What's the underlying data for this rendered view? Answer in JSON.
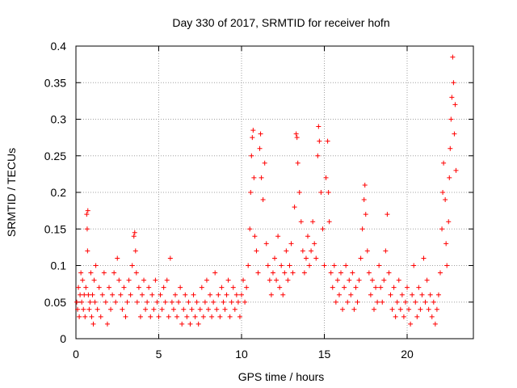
{
  "chart_data": {
    "type": "scatter",
    "title": "Day 330 of 2017, SRMTID for receiver hofn",
    "xlabel": "GPS time / hours",
    "ylabel": "SRMTID / TECUs",
    "xlim": [
      0,
      24
    ],
    "ylim": [
      0,
      0.4
    ],
    "xticks": [
      0,
      5,
      10,
      15,
      20
    ],
    "xtick_labels": [
      "0",
      "5",
      "10",
      "15",
      "20"
    ],
    "yticks": [
      0,
      0.05,
      0.1,
      0.15,
      0.2,
      0.25,
      0.3,
      0.35,
      0.4
    ],
    "ytick_labels": [
      "0",
      "0.05",
      "0.1",
      "0.15",
      "0.2",
      "0.25",
      "0.3",
      "0.35",
      "0.4"
    ],
    "grid": true,
    "marker": "+",
    "series_color": "#ff0000",
    "series": [
      {
        "name": "SRMTID",
        "points": [
          [
            0.05,
            0.05
          ],
          [
            0.1,
            0.04
          ],
          [
            0.15,
            0.07
          ],
          [
            0.2,
            0.03
          ],
          [
            0.25,
            0.06
          ],
          [
            0.3,
            0.09
          ],
          [
            0.35,
            0.05
          ],
          [
            0.4,
            0.08
          ],
          [
            0.45,
            0.04
          ],
          [
            0.5,
            0.06
          ],
          [
            0.55,
            0.03
          ],
          [
            0.6,
            0.07
          ],
          [
            0.65,
            0.17
          ],
          [
            0.68,
            0.15
          ],
          [
            0.7,
            0.12
          ],
          [
            0.72,
            0.175
          ],
          [
            0.75,
            0.06
          ],
          [
            0.8,
            0.04
          ],
          [
            0.85,
            0.05
          ],
          [
            0.9,
            0.09
          ],
          [
            0.95,
            0.03
          ],
          [
            1.0,
            0.06
          ],
          [
            1.05,
            0.02
          ],
          [
            1.1,
            0.08
          ],
          [
            1.15,
            0.05
          ],
          [
            1.2,
            0.1
          ],
          [
            1.3,
            0.04
          ],
          [
            1.4,
            0.07
          ],
          [
            1.5,
            0.03
          ],
          [
            1.6,
            0.06
          ],
          [
            1.7,
            0.09
          ],
          [
            1.8,
            0.05
          ],
          [
            1.9,
            0.02
          ],
          [
            2.0,
            0.07
          ],
          [
            2.1,
            0.04
          ],
          [
            2.2,
            0.06
          ],
          [
            2.3,
            0.09
          ],
          [
            2.4,
            0.05
          ],
          [
            2.5,
            0.11
          ],
          [
            2.6,
            0.08
          ],
          [
            2.7,
            0.06
          ],
          [
            2.8,
            0.04
          ],
          [
            2.9,
            0.07
          ],
          [
            3.0,
            0.03
          ],
          [
            3.1,
            0.05
          ],
          [
            3.2,
            0.08
          ],
          [
            3.3,
            0.06
          ],
          [
            3.4,
            0.1
          ],
          [
            3.5,
            0.14
          ],
          [
            3.55,
            0.145
          ],
          [
            3.6,
            0.12
          ],
          [
            3.65,
            0.09
          ],
          [
            3.7,
            0.05
          ],
          [
            3.8,
            0.07
          ],
          [
            3.9,
            0.03
          ],
          [
            4.0,
            0.06
          ],
          [
            4.1,
            0.08
          ],
          [
            4.2,
            0.04
          ],
          [
            4.3,
            0.05
          ],
          [
            4.4,
            0.07
          ],
          [
            4.5,
            0.03
          ],
          [
            4.6,
            0.06
          ],
          [
            4.7,
            0.04
          ],
          [
            4.8,
            0.08
          ],
          [
            4.9,
            0.05
          ],
          [
            5.0,
            0.03
          ],
          [
            5.1,
            0.06
          ],
          [
            5.2,
            0.04
          ],
          [
            5.3,
            0.07
          ],
          [
            5.4,
            0.05
          ],
          [
            5.5,
            0.08
          ],
          [
            5.6,
            0.03
          ],
          [
            5.7,
            0.11
          ],
          [
            5.8,
            0.05
          ],
          [
            5.9,
            0.04
          ],
          [
            6.0,
            0.06
          ],
          [
            6.1,
            0.03
          ],
          [
            6.2,
            0.05
          ],
          [
            6.3,
            0.07
          ],
          [
            6.4,
            0.02
          ],
          [
            6.5,
            0.04
          ],
          [
            6.6,
            0.06
          ],
          [
            6.7,
            0.03
          ],
          [
            6.8,
            0.05
          ],
          [
            6.9,
            0.02
          ],
          [
            7.0,
            0.04
          ],
          [
            7.1,
            0.06
          ],
          [
            7.2,
            0.03
          ],
          [
            7.3,
            0.05
          ],
          [
            7.4,
            0.02
          ],
          [
            7.5,
            0.04
          ],
          [
            7.6,
            0.07
          ],
          [
            7.7,
            0.03
          ],
          [
            7.8,
            0.05
          ],
          [
            7.9,
            0.08
          ],
          [
            8.0,
            0.04
          ],
          [
            8.1,
            0.06
          ],
          [
            8.2,
            0.03
          ],
          [
            8.3,
            0.05
          ],
          [
            8.4,
            0.09
          ],
          [
            8.5,
            0.04
          ],
          [
            8.6,
            0.06
          ],
          [
            8.7,
            0.03
          ],
          [
            8.8,
            0.07
          ],
          [
            8.9,
            0.05
          ],
          [
            9.0,
            0.04
          ],
          [
            9.1,
            0.06
          ],
          [
            9.2,
            0.08
          ],
          [
            9.3,
            0.03
          ],
          [
            9.4,
            0.05
          ],
          [
            9.5,
            0.07
          ],
          [
            9.6,
            0.04
          ],
          [
            9.7,
            0.06
          ],
          [
            9.8,
            0.05
          ],
          [
            9.9,
            0.03
          ],
          [
            10.0,
            0.06
          ],
          [
            10.1,
            0.08
          ],
          [
            10.2,
            0.05
          ],
          [
            10.3,
            0.07
          ],
          [
            10.4,
            0.1
          ],
          [
            10.5,
            0.15
          ],
          [
            10.55,
            0.2
          ],
          [
            10.6,
            0.25
          ],
          [
            10.65,
            0.275
          ],
          [
            10.7,
            0.285
          ],
          [
            10.75,
            0.22
          ],
          [
            10.8,
            0.14
          ],
          [
            10.9,
            0.12
          ],
          [
            11.0,
            0.09
          ],
          [
            11.1,
            0.26
          ],
          [
            11.15,
            0.28
          ],
          [
            11.2,
            0.22
          ],
          [
            11.3,
            0.19
          ],
          [
            11.4,
            0.24
          ],
          [
            11.5,
            0.13
          ],
          [
            11.6,
            0.1
          ],
          [
            11.7,
            0.08
          ],
          [
            11.8,
            0.06
          ],
          [
            11.9,
            0.09
          ],
          [
            12.0,
            0.11
          ],
          [
            12.1,
            0.08
          ],
          [
            12.2,
            0.14
          ],
          [
            12.3,
            0.07
          ],
          [
            12.4,
            0.1
          ],
          [
            12.5,
            0.06
          ],
          [
            12.6,
            0.09
          ],
          [
            12.7,
            0.12
          ],
          [
            12.8,
            0.08
          ],
          [
            12.9,
            0.1
          ],
          [
            13.0,
            0.13
          ],
          [
            13.1,
            0.09
          ],
          [
            13.2,
            0.18
          ],
          [
            13.3,
            0.28
          ],
          [
            13.35,
            0.275
          ],
          [
            13.4,
            0.24
          ],
          [
            13.5,
            0.2
          ],
          [
            13.6,
            0.16
          ],
          [
            13.7,
            0.12
          ],
          [
            13.8,
            0.09
          ],
          [
            13.9,
            0.11
          ],
          [
            14.0,
            0.14
          ],
          [
            14.1,
            0.1
          ],
          [
            14.2,
            0.12
          ],
          [
            14.3,
            0.16
          ],
          [
            14.4,
            0.13
          ],
          [
            14.5,
            0.11
          ],
          [
            14.6,
            0.25
          ],
          [
            14.65,
            0.29
          ],
          [
            14.7,
            0.27
          ],
          [
            14.8,
            0.2
          ],
          [
            14.9,
            0.15
          ],
          [
            15.0,
            0.1
          ],
          [
            15.1,
            0.22
          ],
          [
            15.2,
            0.27
          ],
          [
            15.25,
            0.2
          ],
          [
            15.3,
            0.16
          ],
          [
            15.4,
            0.09
          ],
          [
            15.5,
            0.07
          ],
          [
            15.6,
            0.1
          ],
          [
            15.7,
            0.05
          ],
          [
            15.8,
            0.08
          ],
          [
            15.9,
            0.06
          ],
          [
            16.0,
            0.09
          ],
          [
            16.1,
            0.04
          ],
          [
            16.2,
            0.07
          ],
          [
            16.3,
            0.1
          ],
          [
            16.4,
            0.05
          ],
          [
            16.5,
            0.08
          ],
          [
            16.6,
            0.06
          ],
          [
            16.7,
            0.09
          ],
          [
            16.8,
            0.04
          ],
          [
            16.9,
            0.07
          ],
          [
            17.0,
            0.05
          ],
          [
            17.1,
            0.08
          ],
          [
            17.2,
            0.11
          ],
          [
            17.3,
            0.15
          ],
          [
            17.4,
            0.19
          ],
          [
            17.45,
            0.21
          ],
          [
            17.5,
            0.17
          ],
          [
            17.6,
            0.12
          ],
          [
            17.7,
            0.09
          ],
          [
            17.8,
            0.06
          ],
          [
            17.9,
            0.08
          ],
          [
            18.0,
            0.04
          ],
          [
            18.1,
            0.07
          ],
          [
            18.2,
            0.05
          ],
          [
            18.3,
            0.1
          ],
          [
            18.4,
            0.07
          ],
          [
            18.5,
            0.05
          ],
          [
            18.6,
            0.08
          ],
          [
            18.7,
            0.12
          ],
          [
            18.8,
            0.17
          ],
          [
            18.9,
            0.09
          ],
          [
            19.0,
            0.06
          ],
          [
            19.1,
            0.04
          ],
          [
            19.2,
            0.07
          ],
          [
            19.3,
            0.03
          ],
          [
            19.4,
            0.05
          ],
          [
            19.5,
            0.08
          ],
          [
            19.6,
            0.04
          ],
          [
            19.7,
            0.06
          ],
          [
            19.8,
            0.03
          ],
          [
            19.9,
            0.05
          ],
          [
            20.0,
            0.07
          ],
          [
            20.1,
            0.04
          ],
          [
            20.2,
            0.02
          ],
          [
            20.3,
            0.06
          ],
          [
            20.4,
            0.1
          ],
          [
            20.5,
            0.05
          ],
          [
            20.6,
            0.03
          ],
          [
            20.7,
            0.07
          ],
          [
            20.8,
            0.04
          ],
          [
            20.9,
            0.06
          ],
          [
            21.0,
            0.11
          ],
          [
            21.1,
            0.05
          ],
          [
            21.2,
            0.08
          ],
          [
            21.3,
            0.04
          ],
          [
            21.4,
            0.06
          ],
          [
            21.5,
            0.03
          ],
          [
            21.6,
            0.05
          ],
          [
            21.7,
            0.02
          ],
          [
            21.8,
            0.04
          ],
          [
            21.9,
            0.06
          ],
          [
            22.0,
            0.09
          ],
          [
            22.1,
            0.15
          ],
          [
            22.15,
            0.2
          ],
          [
            22.2,
            0.24
          ],
          [
            22.3,
            0.19
          ],
          [
            22.35,
            0.13
          ],
          [
            22.4,
            0.1
          ],
          [
            22.5,
            0.16
          ],
          [
            22.55,
            0.22
          ],
          [
            22.6,
            0.26
          ],
          [
            22.65,
            0.3
          ],
          [
            22.7,
            0.33
          ],
          [
            22.75,
            0.385
          ],
          [
            22.8,
            0.35
          ],
          [
            22.85,
            0.28
          ],
          [
            22.9,
            0.32
          ],
          [
            22.95,
            0.23
          ]
        ]
      }
    ]
  }
}
